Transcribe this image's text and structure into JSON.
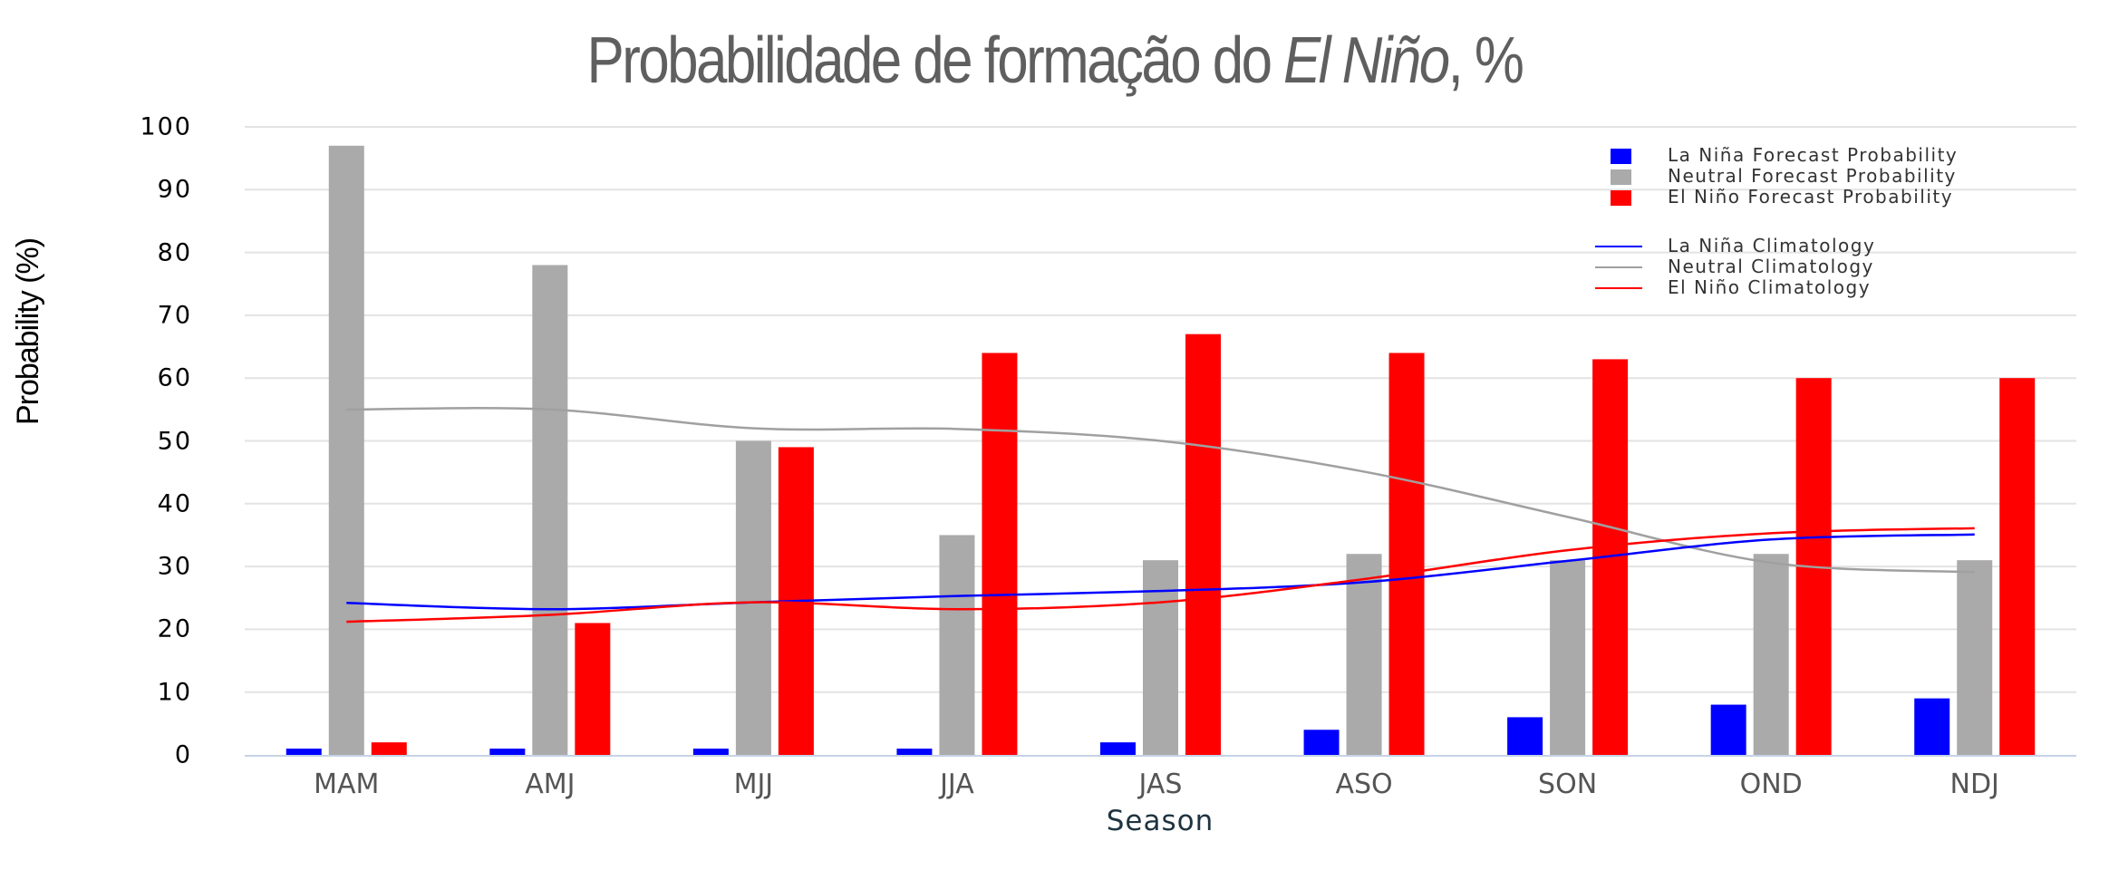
{
  "chart_data": {
    "type": "bar",
    "title": "Probabilidade de formação do El Niño, %",
    "title_parts": {
      "prefix": "Probabilidade de formação do ",
      "italic": "El Niño",
      "suffix": ", %"
    },
    "xlabel": "Season",
    "ylabel": "Probability (%)",
    "ylim": [
      0,
      100
    ],
    "yticks": [
      0,
      10,
      20,
      30,
      40,
      50,
      60,
      70,
      80,
      90,
      100
    ],
    "grid": true,
    "legend_position": "top-right",
    "categories": [
      "MAM",
      "AMJ",
      "MJJ",
      "JJA",
      "JAS",
      "ASO",
      "SON",
      "OND",
      "NDJ"
    ],
    "series": [
      {
        "name": "La Niña Forecast Probability",
        "kind": "bar",
        "color": "#0000ff",
        "values": [
          1,
          1,
          1,
          1,
          2,
          4,
          6,
          8,
          9
        ]
      },
      {
        "name": "Neutral Forecast Probability",
        "kind": "bar",
        "color": "#aaaaaa",
        "values": [
          97,
          78,
          50,
          35,
          31,
          32,
          31,
          32,
          31
        ]
      },
      {
        "name": "El Niño Forecast Probability",
        "kind": "bar",
        "color": "#ff0000",
        "values": [
          2,
          21,
          49,
          64,
          67,
          64,
          63,
          60,
          60
        ]
      },
      {
        "name": "La Niña Climatology",
        "kind": "line",
        "color": "#0000ff",
        "values": [
          24.2,
          23.2,
          24.3,
          25.3,
          26.1,
          27.5,
          30.9,
          34.3,
          35.1
        ]
      },
      {
        "name": "Neutral Climatology",
        "kind": "line",
        "color": "#a0a0a0",
        "values": [
          55.0,
          55.0,
          52.0,
          51.9,
          50.0,
          45.1,
          37.9,
          30.6,
          29.1
        ]
      },
      {
        "name": "El Niño Climatology",
        "kind": "line",
        "color": "#ff0000",
        "values": [
          21.2,
          22.3,
          24.3,
          23.2,
          24.3,
          28.0,
          32.6,
          35.3,
          36.1
        ]
      }
    ]
  },
  "legend": {
    "items": [
      {
        "label": "La Niña Forecast Probability",
        "type": "swatch",
        "color": "#0000ff"
      },
      {
        "label": "Neutral Forecast Probability",
        "type": "swatch",
        "color": "#aaaaaa"
      },
      {
        "label": "El Niño Forecast Probability",
        "type": "swatch",
        "color": "#ff0000"
      },
      {
        "label": "La Niña Climatology",
        "type": "line",
        "color": "#0000ff"
      },
      {
        "label": "Neutral Climatology",
        "type": "line",
        "color": "#a0a0a0"
      },
      {
        "label": "El Niño Climatology",
        "type": "line",
        "color": "#ff0000"
      }
    ]
  }
}
